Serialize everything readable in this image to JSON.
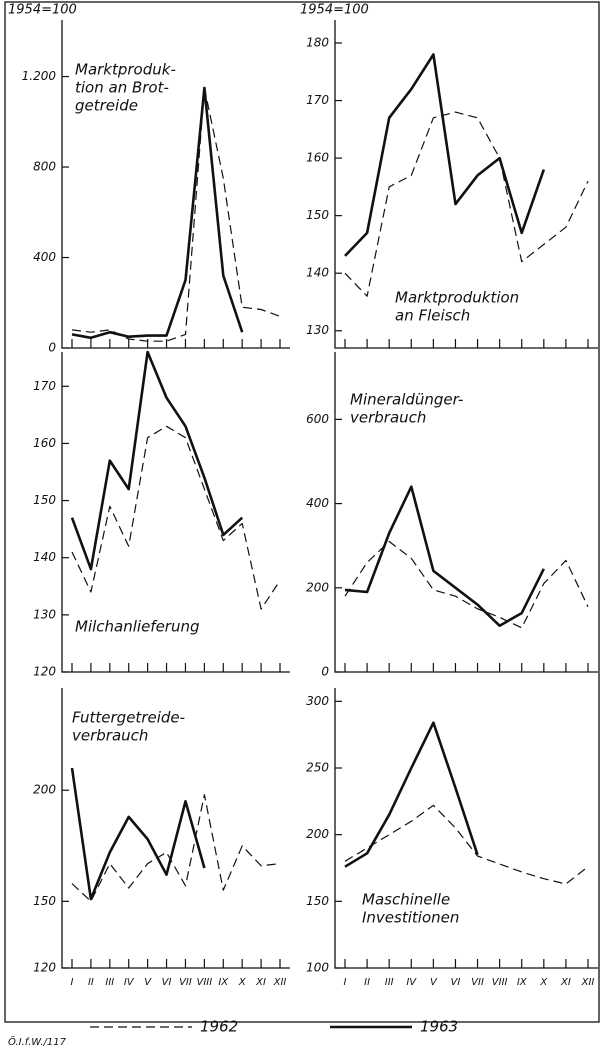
{
  "index_base": "1954=100",
  "months": [
    "I",
    "II",
    "III",
    "IV",
    "V",
    "VI",
    "VII",
    "VIII",
    "IX",
    "X",
    "XI",
    "XII"
  ],
  "legend": [
    {
      "name": "1962",
      "style": "dashed"
    },
    {
      "name": "1963",
      "style": "solid"
    }
  ],
  "source": "Ö.I.f.W./117",
  "chart_data": [
    {
      "type": "line",
      "title": [
        "Marktproduk-",
        "tion an Brot-",
        "getreide"
      ],
      "ylim": [
        0,
        1450
      ],
      "yticks": [
        0,
        400,
        800,
        {
          "value": 1200,
          "label": "1.200"
        }
      ],
      "series": [
        {
          "style": "dashed",
          "color": "#111",
          "values": [
            80,
            70,
            80,
            40,
            30,
            30,
            60,
            1150,
            750,
            180,
            170,
            140
          ]
        },
        {
          "style": "solid",
          "color": "#111",
          "values": [
            60,
            45,
            70,
            50,
            55,
            55,
            300,
            1150,
            320,
            70,
            null,
            null
          ]
        }
      ]
    },
    {
      "type": "line",
      "title": [
        "Marktproduktion",
        "an Fleisch"
      ],
      "ylim": [
        127,
        184
      ],
      "yticks": [
        130,
        140,
        150,
        160,
        170,
        180
      ],
      "series": [
        {
          "style": "dashed",
          "color": "#111",
          "values": [
            140,
            136,
            155,
            157,
            167,
            168,
            167,
            160,
            142,
            145,
            148,
            156
          ]
        },
        {
          "style": "solid",
          "color": "#111",
          "values": [
            143,
            147,
            167,
            172,
            178,
            152,
            157,
            160,
            147,
            158,
            null,
            null
          ]
        }
      ]
    },
    {
      "type": "line",
      "title": [
        "Milchanlieferung"
      ],
      "ylim": [
        120,
        176
      ],
      "yticks": [
        120,
        130,
        140,
        150,
        160,
        170
      ],
      "series": [
        {
          "style": "dashed",
          "color": "#111",
          "values": [
            141,
            134,
            149,
            142,
            161,
            163,
            161,
            152,
            143,
            146,
            131,
            136
          ]
        },
        {
          "style": "solid",
          "color": "#111",
          "values": [
            147,
            138,
            157,
            152,
            176,
            168,
            163,
            154,
            144,
            147,
            null,
            null
          ]
        }
      ]
    },
    {
      "type": "line",
      "title": [
        "Mineraldünger-",
        "verbrauch"
      ],
      "ylim": [
        0,
        760
      ],
      "yticks": [
        0,
        200,
        400,
        600
      ],
      "series": [
        {
          "style": "dashed",
          "color": "#111",
          "values": [
            180,
            260,
            310,
            270,
            195,
            180,
            150,
            130,
            105,
            210,
            265,
            155
          ]
        },
        {
          "style": "solid",
          "color": "#111",
          "values": [
            195,
            190,
            330,
            440,
            240,
            200,
            160,
            110,
            140,
            245,
            null,
            null
          ]
        }
      ]
    },
    {
      "type": "line",
      "title": [
        "Futtergetreide-",
        "verbrauch"
      ],
      "ylim": [
        120,
        246
      ],
      "yticks": [
        120,
        150,
        200
      ],
      "series": [
        {
          "style": "dashed",
          "color": "#111",
          "values": [
            158,
            150,
            167,
            156,
            167,
            172,
            157,
            198,
            155,
            175,
            166,
            167
          ]
        },
        {
          "style": "solid",
          "color": "#111",
          "values": [
            210,
            151,
            172,
            188,
            178,
            162,
            195,
            165,
            null,
            null,
            null,
            null
          ]
        }
      ]
    },
    {
      "type": "line",
      "title": [
        "Maschinelle",
        "Investitionen"
      ],
      "ylim": [
        100,
        310
      ],
      "yticks": [
        100,
        150,
        200,
        250,
        300
      ],
      "series": [
        {
          "style": "dashed",
          "color": "#111",
          "values": [
            180,
            190,
            200,
            210,
            222,
            205,
            184,
            178,
            172,
            167,
            163,
            176
          ]
        },
        {
          "style": "solid",
          "color": "#111",
          "values": [
            176,
            186,
            215,
            250,
            284,
            235,
            185,
            null,
            null,
            null,
            null,
            null
          ]
        }
      ]
    }
  ]
}
